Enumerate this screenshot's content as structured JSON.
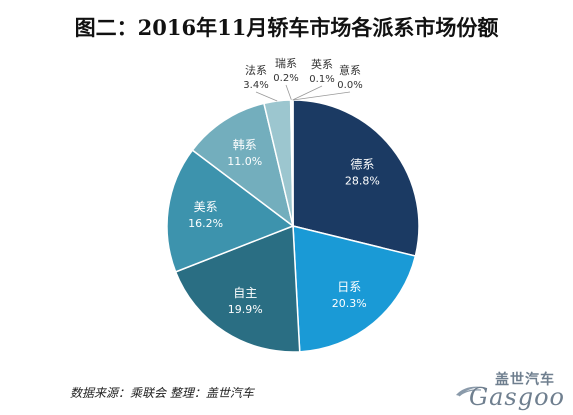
{
  "colors": {
    "德系": "#1b3a63",
    "日系": "#1a9ad6",
    "自主": "#2a6e83",
    "美系": "#3d93ad",
    "韩系": "#73aebd",
    "法系": "#9cc6cf",
    "瑞系": "#b7d4db",
    "英系": "#cfe0e4",
    "意系": "#e3eef0"
  },
  "chart_data": {
    "type": "pie",
    "title": "图二：2016年11月轿车市场各派系市场份额",
    "slices": [
      {
        "label": "德系",
        "value": 28.8,
        "display": "28.8%"
      },
      {
        "label": "日系",
        "value": 20.3,
        "display": "20.3%"
      },
      {
        "label": "自主",
        "value": 19.9,
        "display": "19.9%"
      },
      {
        "label": "美系",
        "value": 16.2,
        "display": "16.2%"
      },
      {
        "label": "韩系",
        "value": 11.0,
        "display": "11.0%"
      },
      {
        "label": "法系",
        "value": 3.4,
        "display": "3.4%"
      },
      {
        "label": "瑞系",
        "value": 0.2,
        "display": "0.2%"
      },
      {
        "label": "英系",
        "value": 0.1,
        "display": "0.1%"
      },
      {
        "label": "意系",
        "value": 0.0,
        "display": "0.0%"
      }
    ]
  },
  "footer": {
    "source": "数据来源：乘联会  整理：盖世汽车"
  },
  "logo": {
    "cn": "盖世汽车",
    "en": "Gasgoo"
  }
}
